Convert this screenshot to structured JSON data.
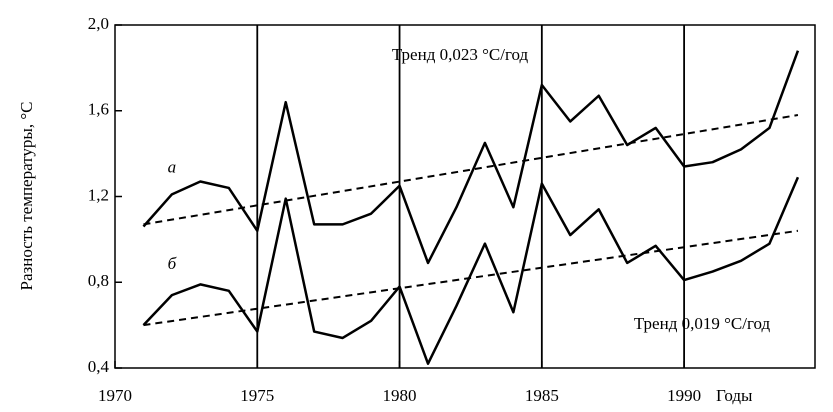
{
  "chart_data": {
    "type": "line",
    "x_label": "Годы",
    "y_label": "Разность температуры,  °С",
    "x": [
      1971,
      1972,
      1973,
      1974,
      1975,
      1976,
      1977,
      1978,
      1979,
      1980,
      1981,
      1982,
      1983,
      1984,
      1985,
      1986,
      1987,
      1988,
      1989,
      1990,
      1991,
      1992,
      1993,
      1994
    ],
    "series": [
      {
        "name": "а",
        "color": "#000000",
        "values": [
          1.06,
          1.21,
          1.27,
          1.24,
          1.04,
          1.64,
          1.07,
          1.07,
          1.12,
          1.25,
          0.89,
          1.15,
          1.45,
          1.15,
          1.72,
          1.55,
          1.67,
          1.44,
          1.52,
          1.34,
          1.36,
          1.42,
          1.52,
          1.88
        ]
      },
      {
        "name": "б",
        "color": "#000000",
        "values": [
          0.6,
          0.74,
          0.79,
          0.76,
          0.57,
          1.19,
          0.57,
          0.54,
          0.62,
          0.78,
          0.42,
          0.69,
          0.98,
          0.66,
          1.26,
          1.02,
          1.14,
          0.89,
          0.97,
          0.81,
          0.85,
          0.9,
          0.98,
          1.29
        ]
      }
    ],
    "trends": [
      {
        "x": [
          1971,
          1994
        ],
        "values": [
          1.07,
          1.58
        ],
        "label": "Тренд 0,023 °С/год"
      },
      {
        "x": [
          1971,
          1994
        ],
        "values": [
          0.6,
          1.04
        ],
        "label": "Тренд 0,019 °С/год"
      }
    ],
    "xlim": [
      1970,
      1994.6
    ],
    "ylim": [
      0.4,
      2.0
    ],
    "xticks": [
      1970,
      1975,
      1980,
      1985,
      1990
    ],
    "yticks": [
      {
        "value": 0.4,
        "label": "0,4"
      },
      {
        "value": 0.8,
        "label": "0,8"
      },
      {
        "value": 1.2,
        "label": "1,2"
      },
      {
        "value": 1.6,
        "label": "1,6"
      },
      {
        "value": 2.0,
        "label": "2,0"
      }
    ],
    "vertical_grid": true
  }
}
